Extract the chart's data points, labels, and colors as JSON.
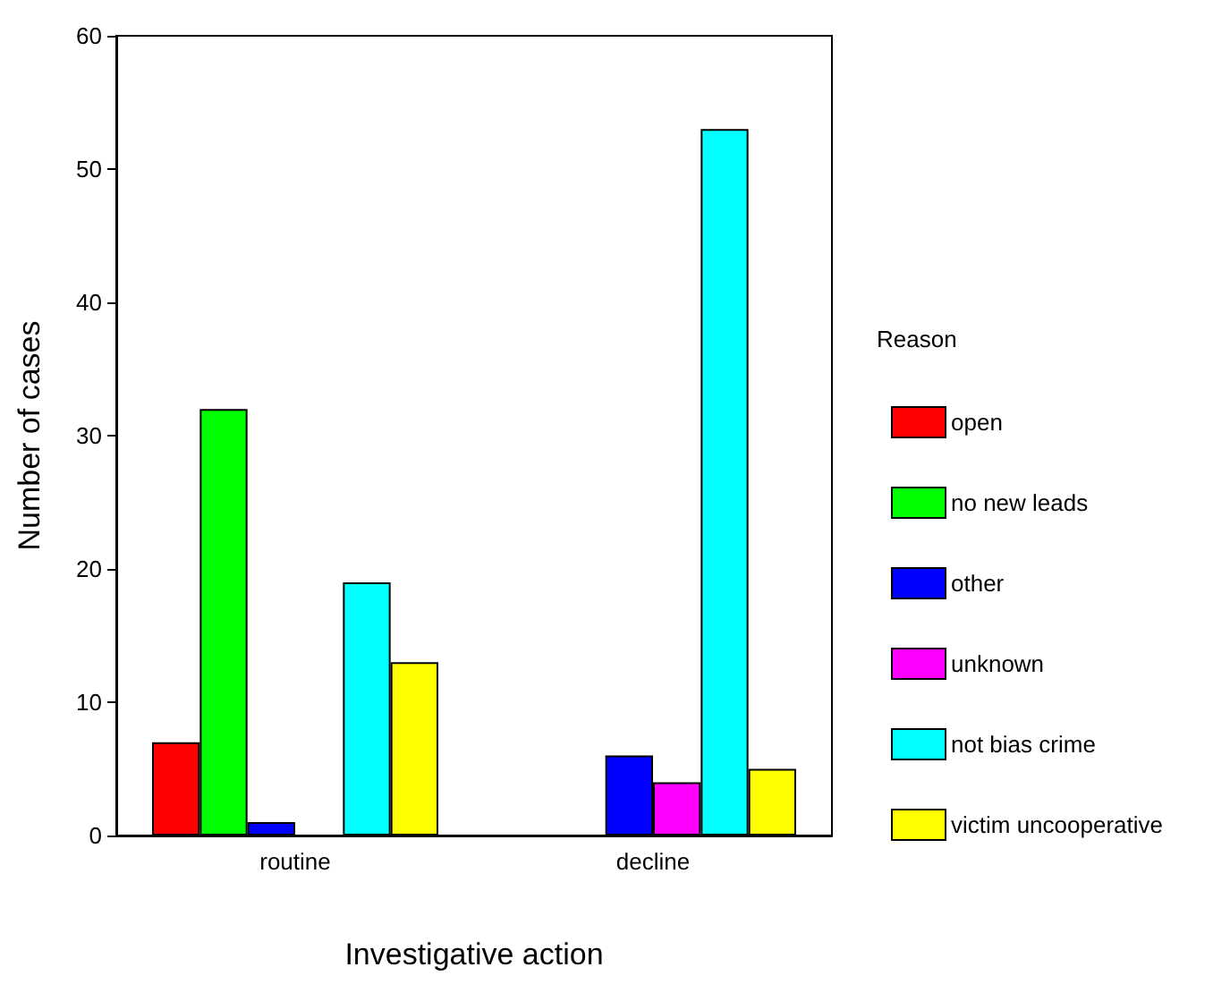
{
  "chart_data": {
    "type": "bar",
    "xlabel": "Investigative action",
    "ylabel": "Number of cases",
    "legend_title": "Reason",
    "categories": [
      "routine",
      "decline"
    ],
    "series": [
      {
        "name": "open",
        "color": "#ff0000",
        "values": [
          7,
          0
        ]
      },
      {
        "name": "no new leads",
        "color": "#00ff00",
        "values": [
          32,
          0
        ]
      },
      {
        "name": "other",
        "color": "#0000ff",
        "values": [
          1,
          6
        ]
      },
      {
        "name": "unknown",
        "color": "#ff00ff",
        "values": [
          0,
          4
        ]
      },
      {
        "name": "not bias crime",
        "color": "#00ffff",
        "values": [
          19,
          53
        ]
      },
      {
        "name": "victim uncooperative",
        "color": "#ffff00",
        "values": [
          13,
          5
        ]
      }
    ],
    "ylim": [
      0,
      60
    ],
    "yticks": [
      0,
      10,
      20,
      30,
      40,
      50,
      60
    ],
    "grid": false,
    "legend": "right"
  }
}
